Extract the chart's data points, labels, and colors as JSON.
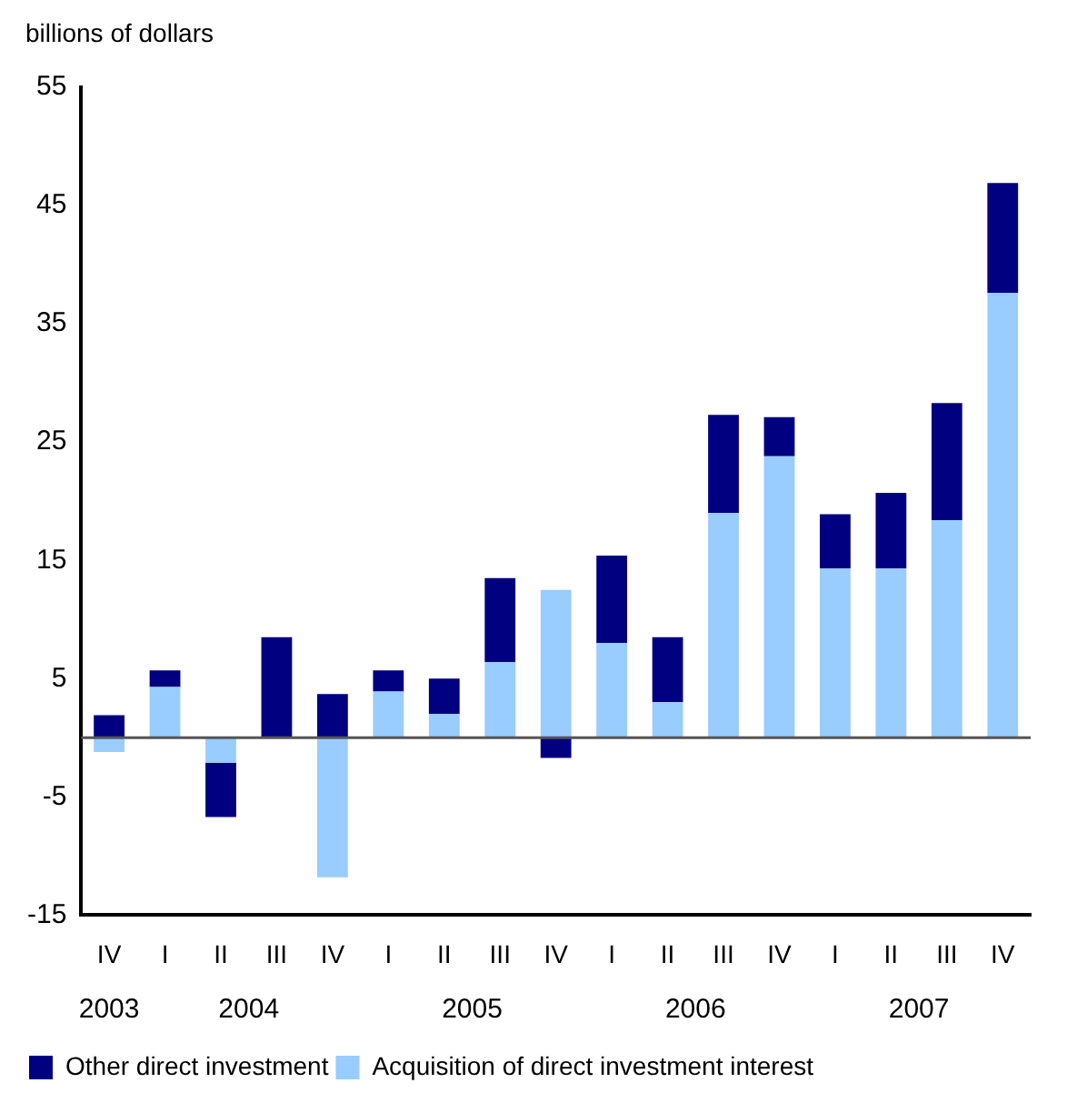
{
  "chart_data": {
    "type": "bar",
    "stacked": true,
    "ylabel": "billions of dollars",
    "categories": [
      "IV",
      "I",
      "II",
      "III",
      "IV",
      "I",
      "II",
      "III",
      "IV",
      "I",
      "II",
      "III",
      "IV",
      "I",
      "II",
      "III",
      "IV"
    ],
    "series": [
      {
        "name": "Acquisition of direct investment interest",
        "color": "#99ccff",
        "values": [
          -1.2,
          4.3,
          -2.1,
          0,
          -11.8,
          3.9,
          2.0,
          6.4,
          12.5,
          8.0,
          3.0,
          19.0,
          23.8,
          14.3,
          14.3,
          18.4,
          37.6
        ]
      },
      {
        "name": "Other direct investment",
        "color": "#000080",
        "values": [
          1.9,
          1.4,
          -4.6,
          8.5,
          3.7,
          1.8,
          3.0,
          7.1,
          -1.7,
          7.4,
          5.5,
          8.3,
          3.3,
          4.6,
          6.4,
          9.9,
          9.3
        ]
      }
    ],
    "annotations": [
      "2003",
      "2004",
      "2005",
      "2006",
      "2007"
    ],
    "ylim": [
      -15,
      55
    ],
    "yticks": [
      -15,
      -5,
      5,
      15,
      25,
      35,
      45,
      55
    ],
    "grid": false,
    "legend": "bottom"
  }
}
